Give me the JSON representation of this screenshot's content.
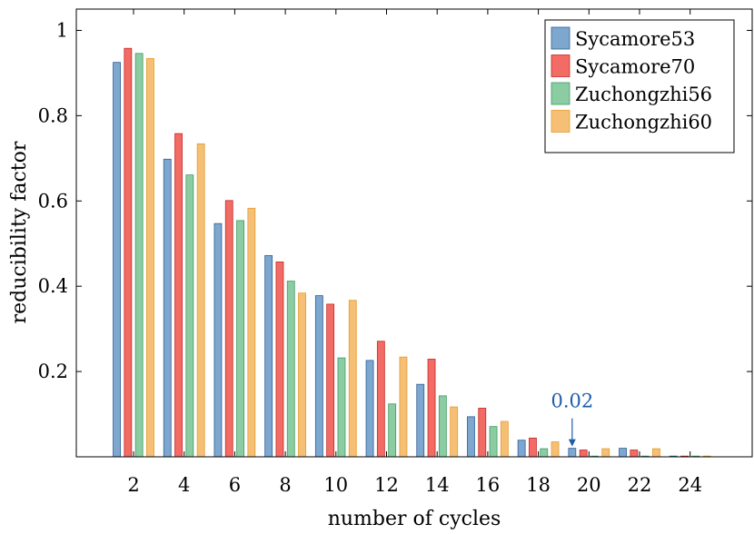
{
  "chart_data": {
    "type": "bar",
    "title": "",
    "xlabel": "number of cycles",
    "ylabel": "reducibility factor",
    "categories": [
      "2",
      "4",
      "6",
      "8",
      "10",
      "12",
      "14",
      "16",
      "18",
      "20",
      "22",
      "24"
    ],
    "ylim": [
      0,
      1.05
    ],
    "y_ticks": [
      "0.2",
      "0.4",
      "0.6",
      "0.8",
      "1"
    ],
    "grid": false,
    "legend_position": "top-right",
    "series": [
      {
        "name": "Sycamore53",
        "color": "#7da7cf",
        "edge": "#2e5f95",
        "values": [
          0.925,
          0.698,
          0.547,
          0.472,
          0.378,
          0.226,
          0.17,
          0.094,
          0.039,
          0.02,
          0.02,
          0.001
        ]
      },
      {
        "name": "Sycamore70",
        "color": "#f26b64",
        "edge": "#c42a26",
        "values": [
          0.958,
          0.758,
          0.601,
          0.457,
          0.358,
          0.271,
          0.229,
          0.114,
          0.044,
          0.016,
          0.016,
          0.001
        ]
      },
      {
        "name": "Zuchongzhi56",
        "color": "#8ccca3",
        "edge": "#3e9a60",
        "values": [
          0.946,
          0.661,
          0.554,
          0.412,
          0.232,
          0.124,
          0.143,
          0.071,
          0.019,
          0.001,
          0.001,
          0.001
        ]
      },
      {
        "name": "Zuchongzhi60",
        "color": "#f5c076",
        "edge": "#e59a2c",
        "values": [
          0.934,
          0.734,
          0.583,
          0.384,
          0.367,
          0.234,
          0.117,
          0.083,
          0.035,
          0.019,
          0.019,
          0.001
        ]
      }
    ],
    "annotation": {
      "text": "0.02",
      "category": "20",
      "series": "Sycamore53",
      "value": 0.02,
      "color": "#1f5ea8"
    }
  }
}
